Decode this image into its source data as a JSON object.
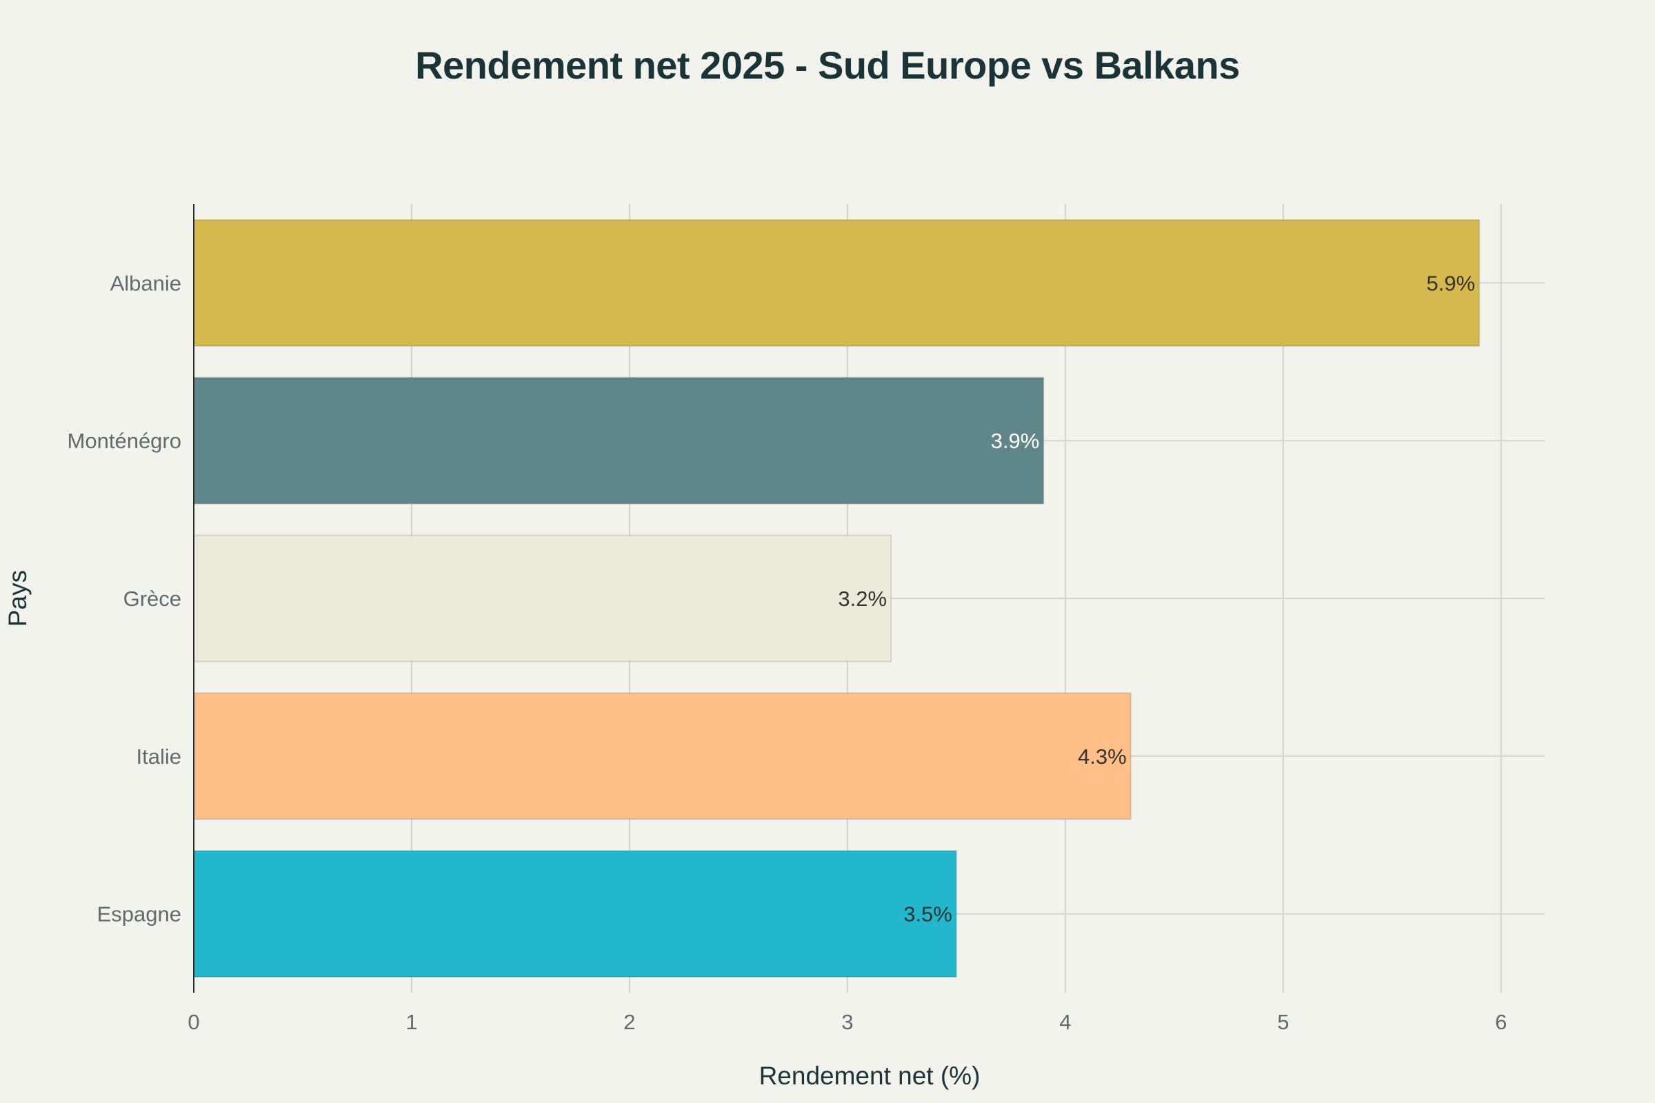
{
  "chart_data": {
    "type": "bar",
    "orientation": "horizontal",
    "title": "Rendement net 2025 - Sud Europe vs Balkans",
    "xlabel": "Rendement net (%)",
    "ylabel": "Pays",
    "categories": [
      "Albanie",
      "Monténégro",
      "Grèce",
      "Italie",
      "Espagne"
    ],
    "values": [
      5.9,
      3.9,
      3.2,
      4.3,
      3.5
    ],
    "data_labels": [
      "5.9%",
      "3.9%",
      "3.2%",
      "4.3%",
      "3.5%"
    ],
    "colors": [
      "#d4b94e",
      "#5e868b",
      "#ecebd8",
      "#ffbf86",
      "#22b7cc"
    ],
    "label_colors": [
      "#333333",
      "#ffffff",
      "#333333",
      "#333333",
      "#333333"
    ],
    "xlim": [
      0,
      6.2
    ],
    "xticks": [
      0,
      1,
      2,
      3,
      4,
      5,
      6
    ],
    "grid": true,
    "legend": "none"
  }
}
